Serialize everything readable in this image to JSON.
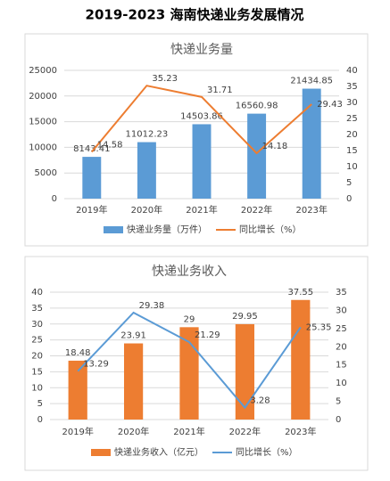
{
  "title": "2019-2023 海南快递业务发展情况",
  "chart_data": [
    {
      "type": "combo",
      "title": "快递业务量",
      "categories": [
        "2019年",
        "2020年",
        "2021年",
        "2022年",
        "2023年"
      ],
      "series": [
        {
          "name": "快递业务量（万件）",
          "type": "bar",
          "color": "#5b9bd5",
          "values": [
            8143.41,
            11012.23,
            14503.86,
            16560.98,
            21434.85
          ]
        },
        {
          "name": "同比增长（%）",
          "type": "line",
          "axis": "y2",
          "color": "#ed7d31",
          "values": [
            14.58,
            35.23,
            31.71,
            14.18,
            29.43
          ]
        }
      ],
      "ylim": [
        0,
        25000
      ],
      "yticks": [
        0,
        5000,
        10000,
        15000,
        20000,
        25000
      ],
      "y2lim": [
        0,
        40
      ],
      "y2ticks": [
        0,
        5,
        10,
        15,
        20,
        25,
        30,
        35,
        40
      ],
      "grid": true
    },
    {
      "type": "combo",
      "title": "快递业务收入",
      "categories": [
        "2019年",
        "2020年",
        "2021年",
        "2022年",
        "2023年"
      ],
      "series": [
        {
          "name": "快递业务收入（亿元）",
          "type": "bar",
          "color": "#ed7d31",
          "values": [
            18.48,
            23.91,
            29,
            29.95,
            37.55
          ]
        },
        {
          "name": "同比增长（%）",
          "type": "line",
          "axis": "y2",
          "color": "#5b9bd5",
          "values": [
            13.29,
            29.38,
            21.29,
            3.28,
            25.35
          ]
        }
      ],
      "ylim": [
        0,
        40
      ],
      "yticks": [
        0,
        5,
        10,
        15,
        20,
        25,
        30,
        35,
        40
      ],
      "y2lim": [
        0,
        35
      ],
      "y2ticks": [
        0,
        5,
        10,
        15,
        20,
        25,
        30,
        35
      ],
      "grid": true
    }
  ]
}
